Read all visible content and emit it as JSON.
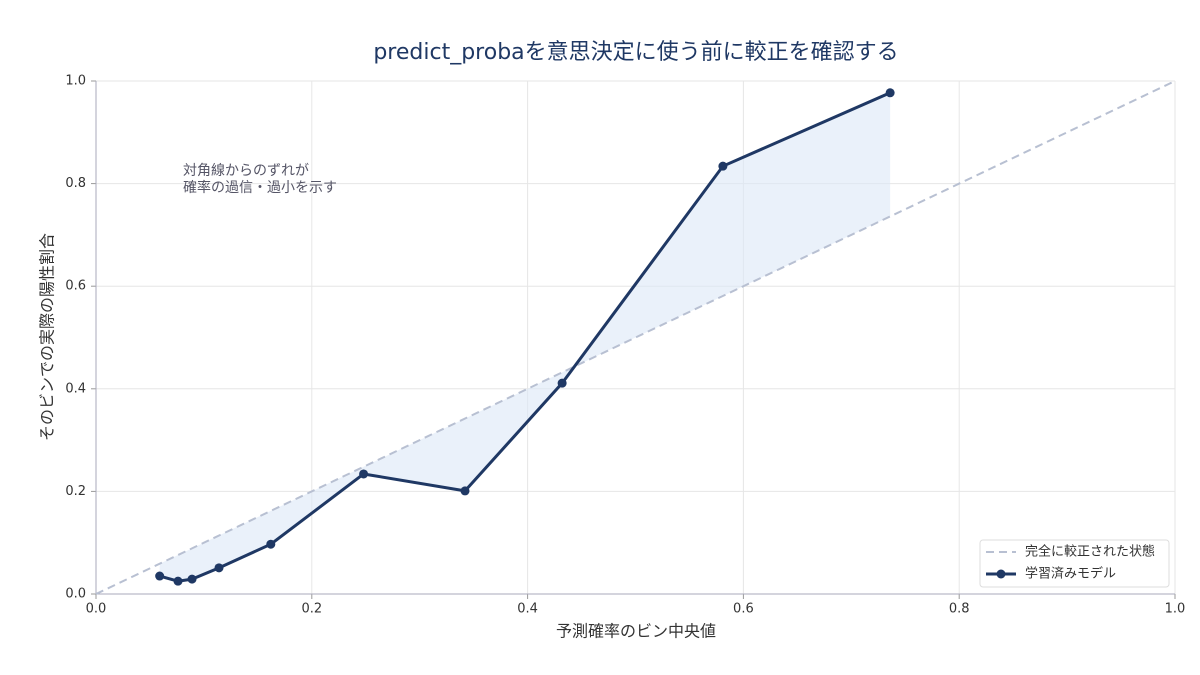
{
  "chart_data": {
    "type": "line",
    "title": "predict_probaを意思決定に使う前に較正を確認する",
    "x_label": "予測確率のビン中央値",
    "y_label": "そのビンでの実際の陽性割合",
    "annotation": [
      "対角線からのずれが",
      "確率の過信・過小を示す"
    ],
    "xlim": [
      0,
      1
    ],
    "ylim": [
      0,
      1
    ],
    "xticks": [
      {
        "value": 0,
        "label": "0.0"
      },
      0.2,
      0.4,
      0.6,
      0.8,
      {
        "value": 1,
        "label": "1.0"
      }
    ],
    "yticks": [
      {
        "value": 0,
        "label": "0.0"
      },
      0.2,
      0.4,
      0.6,
      0.8,
      {
        "value": 1,
        "label": "1.0"
      }
    ],
    "grid": true,
    "legend": "lower right",
    "shade_color": "#dce8f7",
    "series": [
      {
        "name": "完全に較正された状態",
        "color": "#b8c0d2",
        "dashed": true,
        "markers": false,
        "x": [
          0,
          1
        ],
        "values": [
          0,
          1
        ]
      },
      {
        "name": "学習済みモデル",
        "color": "#1f3864",
        "dashed": false,
        "markers": true,
        "x": [
          0.059,
          0.076,
          0.089,
          0.114,
          0.162,
          0.248,
          0.342,
          0.432,
          0.581,
          0.736
        ],
        "values": [
          0.035,
          0.025,
          0.029,
          0.051,
          0.097,
          0.234,
          0.201,
          0.411,
          0.834,
          0.977
        ]
      }
    ]
  }
}
